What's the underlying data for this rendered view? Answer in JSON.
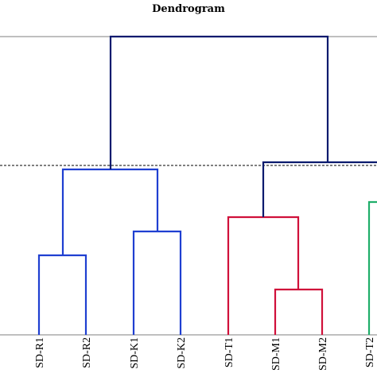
{
  "chart_data": {
    "type": "dendrogram",
    "title": "Dendrogram",
    "leaves": [
      "SD-R1",
      "SD-R2",
      "SD-K1",
      "SD-K2",
      "SD-T1",
      "SD-M1",
      "SD-M2",
      "SD-T2"
    ],
    "cut_line": "dashed",
    "grid": false,
    "merges": [
      {
        "left": "SD-R1",
        "right": "SD-R2",
        "height": 0.33,
        "color": "#1f3fd1"
      },
      {
        "left": "SD-K1",
        "right": "SD-K2",
        "height": 0.43,
        "color": "#1f3fd1"
      },
      {
        "left": "R-pair",
        "right": "K-pair",
        "height": 0.69,
        "color": "#1f3fd1"
      },
      {
        "left": "SD-M1",
        "right": "SD-M2",
        "height": 0.19,
        "color": "#d0103a"
      },
      {
        "left": "SD-T1",
        "right": "M-pair",
        "height": 0.49,
        "color": "#d0103a"
      },
      {
        "left": "T1-M-group",
        "right": "SD-T2",
        "height": 0.71,
        "color": "#0a1a6e"
      },
      {
        "left": "R-K-group",
        "right": "T-M-group",
        "height": 1.0,
        "color": "#0a1a6e"
      }
    ],
    "colors": {
      "blue_cluster": "#1f3fd1",
      "red_cluster": "#d0103a",
      "green_cluster": "#1fae6a",
      "root": "#0a1a6e",
      "axis": "#999999"
    }
  }
}
